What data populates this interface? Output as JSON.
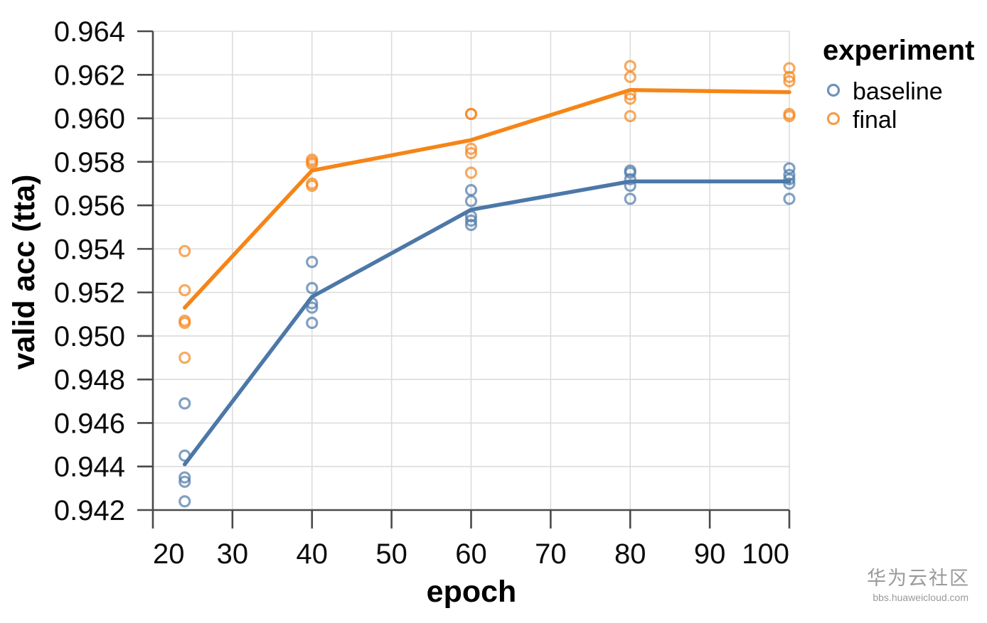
{
  "watermark": {
    "line1": "华为云社区",
    "line2": "bbs.huaweicloud.com",
    "color": "#9a9a9a"
  },
  "chart_data": {
    "type": "scatter",
    "title": "",
    "xlabel": "epoch",
    "ylabel": "valid acc (tta)",
    "xlim": [
      20,
      100
    ],
    "ylim": [
      0.942,
      0.964
    ],
    "grid": true,
    "marker": "open-circle",
    "x_ticks": [
      20,
      30,
      40,
      50,
      60,
      70,
      80,
      90,
      100
    ],
    "x_tick_labels": [
      "20",
      "30",
      "40",
      "50",
      "60",
      "70",
      "80",
      "90",
      "100"
    ],
    "y_ticks": [
      0.942,
      0.944,
      0.946,
      0.948,
      0.95,
      0.952,
      0.954,
      0.956,
      0.958,
      0.96,
      0.962,
      0.964
    ],
    "y_tick_labels": [
      "0.942",
      "0.944",
      "0.946",
      "0.948",
      "0.950",
      "0.952",
      "0.954",
      "0.956",
      "0.958",
      "0.960",
      "0.962",
      "0.964"
    ],
    "legend": {
      "title": "experiment",
      "position": "right",
      "entries": [
        {
          "label": "baseline",
          "color": "#4c78a8"
        },
        {
          "label": "final",
          "color": "#f58518"
        }
      ]
    },
    "x": [
      24,
      40,
      60,
      80,
      100
    ],
    "series": [
      {
        "name": "baseline",
        "color": "#4c78a8",
        "points_by_x": [
          [
            0.9469,
            0.9445,
            0.9435,
            0.9433,
            0.9424
          ],
          [
            0.9534,
            0.9522,
            0.9515,
            0.9513,
            0.9506
          ],
          [
            0.9567,
            0.9562,
            0.9555,
            0.9553,
            0.9551
          ],
          [
            0.9576,
            0.9575,
            0.9572,
            0.9569,
            0.9563
          ],
          [
            0.9577,
            0.9574,
            0.9572,
            0.957,
            0.9563
          ]
        ],
        "mean_line": [
          0.9441,
          0.9518,
          0.9558,
          0.9571,
          0.9571
        ]
      },
      {
        "name": "final",
        "color": "#f58518",
        "points_by_x": [
          [
            0.9539,
            0.9521,
            0.9507,
            0.9506,
            0.949
          ],
          [
            0.9581,
            0.958,
            0.9579,
            0.957,
            0.9569
          ],
          [
            0.9602,
            0.9602,
            0.9586,
            0.9584,
            0.9575
          ],
          [
            0.9624,
            0.9619,
            0.9611,
            0.9609,
            0.9601
          ],
          [
            0.9623,
            0.9619,
            0.9617,
            0.9602,
            0.9601
          ]
        ],
        "mean_line": [
          0.9513,
          0.9576,
          0.959,
          0.9613,
          0.9612
        ]
      }
    ]
  }
}
